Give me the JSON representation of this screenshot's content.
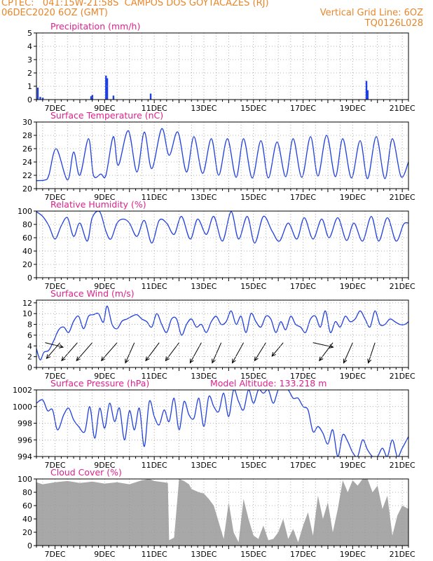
{
  "header": {
    "line1_left": "CPTEC:   041:15W-21:58S  CAMPOS DOS GOYTACAZES (RJ)",
    "line2_left": "06DEC2020 6OZ (GMT)",
    "line2_right": "Vertical Grid Line: 6OZ",
    "line3_right": "TQ0126L028"
  },
  "colors": {
    "header": "#e8862a",
    "title": "#e0208c",
    "series": "#1f3fe0",
    "cloud": "#a8a8a8"
  },
  "x_axis": {
    "ticks": [
      "7DEC",
      "9DEC",
      "11DEC",
      "13DEC",
      "15DEC",
      "17DEC",
      "19DEC",
      "21DEC"
    ],
    "tick_days": [
      7,
      9,
      11,
      13,
      15,
      17,
      19,
      21
    ],
    "range_days": [
      6.25,
      21.25
    ]
  },
  "chart_data": [
    {
      "type": "bar",
      "title": "Precipitation (mm/h)",
      "ylim": [
        0,
        5
      ],
      "yticks": [
        0,
        1,
        2,
        3,
        4,
        5
      ],
      "grid": true,
      "x_days": [
        6.3,
        6.4,
        6.5,
        8.45,
        8.5,
        9.05,
        9.1,
        9.35,
        10.85,
        19.55,
        19.6
      ],
      "values": [
        0.9,
        0.2,
        0.15,
        0.25,
        0.35,
        1.8,
        1.6,
        0.3,
        0.45,
        1.4,
        0.7
      ]
    },
    {
      "type": "line",
      "title": "Surface Temperature (nC)",
      "ylim": [
        20,
        30
      ],
      "yticks": [
        20,
        22,
        24,
        26,
        28,
        30
      ],
      "grid": true,
      "x_days": [
        6.25,
        6.6,
        6.75,
        7.05,
        7.5,
        7.75,
        8.0,
        8.35,
        8.55,
        8.85,
        9.05,
        9.35,
        9.55,
        9.95,
        10.3,
        10.6,
        10.9,
        11.3,
        11.6,
        11.95,
        12.3,
        12.6,
        12.95,
        13.3,
        13.6,
        13.95,
        14.3,
        14.6,
        14.95,
        15.3,
        15.6,
        15.95,
        16.3,
        16.6,
        16.95,
        17.3,
        17.6,
        17.95,
        18.3,
        18.6,
        18.95,
        19.3,
        19.6,
        19.95,
        20.3,
        20.6,
        20.95,
        21.25
      ],
      "values": [
        21.2,
        21.3,
        22.0,
        26.0,
        21.3,
        25.5,
        22.0,
        27.5,
        22.0,
        22.2,
        22.0,
        27.8,
        23.5,
        28.7,
        22.5,
        28.5,
        23.0,
        29.0,
        25.0,
        28.5,
        22.5,
        27.8,
        22.3,
        27.5,
        22.0,
        27.5,
        21.7,
        27.5,
        21.6,
        27.2,
        21.6,
        27.0,
        21.8,
        27.5,
        21.7,
        27.8,
        21.9,
        28.0,
        21.8,
        27.5,
        21.6,
        27.2,
        21.5,
        27.8,
        21.5,
        27.5,
        21.8,
        24.0
      ]
    },
    {
      "type": "line",
      "title": "Relative Humidity (%)",
      "ylim": [
        0,
        100
      ],
      "yticks": [
        0,
        20,
        40,
        60,
        80,
        100
      ],
      "grid": true,
      "x_days": [
        6.25,
        6.5,
        6.75,
        7.0,
        7.25,
        7.5,
        7.75,
        8.0,
        8.3,
        8.5,
        8.8,
        9.05,
        9.25,
        9.5,
        9.75,
        10.0,
        10.3,
        10.6,
        10.9,
        11.2,
        11.5,
        11.8,
        12.1,
        12.45,
        12.75,
        13.1,
        13.4,
        13.75,
        14.1,
        14.4,
        14.75,
        15.05,
        15.4,
        15.75,
        16.05,
        16.4,
        16.75,
        17.05,
        17.4,
        17.75,
        18.05,
        18.4,
        18.75,
        19.05,
        19.4,
        19.75,
        20.05,
        20.4,
        20.75,
        21.05,
        21.25
      ],
      "values": [
        99,
        92,
        78,
        58,
        78,
        90,
        62,
        82,
        55,
        90,
        99,
        70,
        58,
        82,
        88,
        82,
        62,
        86,
        52,
        86,
        82,
        65,
        92,
        58,
        88,
        65,
        92,
        55,
        99,
        58,
        92,
        52,
        92,
        70,
        55,
        82,
        58,
        90,
        58,
        88,
        60,
        90,
        56,
        82,
        55,
        92,
        55,
        90,
        55,
        80,
        82
      ]
    },
    {
      "type": "line",
      "title": "Surface Wind (m/s)",
      "ylim": [
        0,
        12.5
      ],
      "yticks": [
        0,
        2,
        4,
        6,
        8,
        10,
        12
      ],
      "grid": true,
      "x_days": [
        6.25,
        6.4,
        6.55,
        6.75,
        6.95,
        7.15,
        7.35,
        7.55,
        7.75,
        7.95,
        8.15,
        8.35,
        8.55,
        8.75,
        8.95,
        9.1,
        9.3,
        9.5,
        9.7,
        9.9,
        10.1,
        10.3,
        10.5,
        10.7,
        10.9,
        11.1,
        11.3,
        11.5,
        11.7,
        11.9,
        12.1,
        12.3,
        12.5,
        12.7,
        12.9,
        13.1,
        13.3,
        13.5,
        13.7,
        13.9,
        14.1,
        14.3,
        14.5,
        14.7,
        14.9,
        15.1,
        15.3,
        15.5,
        15.7,
        15.9,
        16.1,
        16.3,
        16.5,
        16.7,
        16.9,
        17.1,
        17.3,
        17.5,
        17.7,
        17.9,
        18.1,
        18.3,
        18.5,
        18.7,
        18.9,
        19.1,
        19.3,
        19.5,
        19.7,
        19.9,
        20.1,
        20.3,
        20.5,
        20.7,
        20.9,
        21.1,
        21.25
      ],
      "values": [
        3.5,
        1.4,
        2.8,
        3.2,
        5.0,
        7.0,
        7.5,
        6.5,
        8.6,
        9.5,
        7.2,
        9.5,
        9.8,
        10.0,
        8.4,
        11.4,
        8.0,
        7.2,
        8.6,
        9.0,
        9.5,
        9.8,
        9.0,
        8.5,
        7.5,
        10.0,
        8.0,
        6.5,
        9.0,
        9.0,
        6.0,
        8.0,
        9.0,
        7.5,
        8.0,
        6.5,
        8.5,
        9.5,
        8.0,
        8.5,
        10.5,
        8.0,
        9.5,
        6.5,
        10.0,
        8.5,
        7.5,
        9.5,
        9.0,
        6.5,
        8.5,
        7.0,
        9.5,
        8.0,
        7.5,
        6.5,
        9.0,
        9.5,
        7.5,
        10.5,
        6.5,
        8.5,
        7.5,
        9.5,
        8.5,
        9.0,
        10.5,
        9.0,
        7.5,
        10.5,
        8.0,
        8.0,
        9.0,
        8.5,
        8.0,
        8.0,
        8.5
      ],
      "vectors": {
        "x_days": [
          6.6,
          7.2,
          7.9,
          8.5,
          9.5,
          10.2,
          11.2,
          12.0,
          12.9,
          13.7,
          14.6,
          15.5,
          16.2,
          17.4,
          18.2,
          19.0,
          19.9
        ],
        "u": [
          0.8,
          -0.6,
          -0.7,
          -0.7,
          -0.7,
          -0.4,
          -0.6,
          -0.6,
          -0.5,
          -0.4,
          -0.5,
          -0.5,
          -0.5,
          0.9,
          -0.6,
          -0.4,
          -0.3
        ],
        "v": [
          -0.2,
          -0.7,
          -0.8,
          -0.8,
          -0.8,
          -0.9,
          -0.8,
          -0.8,
          -0.9,
          -0.9,
          -0.9,
          -0.8,
          -0.6,
          -0.2,
          -0.8,
          -0.9,
          -0.9
        ]
      }
    },
    {
      "type": "line",
      "title": "Surface Pressure (hPa)",
      "annotation": "Model Altitude: 133.218 m",
      "ylim": [
        994,
        1002
      ],
      "yticks": [
        994,
        996,
        998,
        1000,
        1002
      ],
      "grid": true,
      "x_days": [
        6.25,
        6.5,
        6.7,
        6.9,
        7.1,
        7.35,
        7.55,
        7.75,
        7.95,
        8.2,
        8.4,
        8.6,
        8.8,
        9.0,
        9.2,
        9.4,
        9.6,
        9.8,
        10.0,
        10.2,
        10.4,
        10.6,
        10.8,
        11.0,
        11.2,
        11.4,
        11.6,
        11.8,
        12.0,
        12.2,
        12.4,
        12.6,
        12.8,
        13.0,
        13.2,
        13.4,
        13.6,
        13.8,
        14.0,
        14.2,
        14.4,
        14.6,
        14.8,
        15.0,
        15.2,
        15.4,
        15.6,
        15.8,
        16.0,
        16.2,
        16.4,
        16.6,
        16.8,
        17.0,
        17.2,
        17.4,
        17.6,
        17.8,
        18.0,
        18.2,
        18.4,
        18.6,
        18.8,
        19.0,
        19.2,
        19.4,
        19.6,
        19.8,
        20.0,
        20.2,
        20.4,
        20.6,
        20.8,
        21.0,
        21.25
      ],
      "values": [
        1000.4,
        1000.8,
        999.5,
        999.6,
        997.2,
        999.0,
        999.8,
        998.4,
        997.6,
        997.0,
        1000.0,
        996.2,
        999.8,
        997.4,
        1000.4,
        998.2,
        999.8,
        996.0,
        999.5,
        997.2,
        999.8,
        995.2,
        1000.6,
        998.8,
        997.8,
        999.6,
        998.2,
        1001.0,
        997.2,
        1000.6,
        999.0,
        998.6,
        1001.0,
        997.6,
        1001.2,
        1000.0,
        999.4,
        1001.6,
        998.8,
        1002.0,
        1000.6,
        999.6,
        1002.0,
        1000.4,
        1002.0,
        1001.6,
        1002.0,
        1000.4,
        1002.0,
        1002.0,
        1002.0,
        1001.0,
        1001.0,
        1000.0,
        999.6,
        997.0,
        997.6,
        996.8,
        995.5,
        997.2,
        994.0,
        996.6,
        995.8,
        994.5,
        994.0,
        996.0,
        994.8,
        994.0,
        994.0,
        995.0,
        994.0,
        996.0,
        994.0,
        995.0,
        996.4
      ]
    },
    {
      "type": "area",
      "title": "Cloud Cover (%)",
      "ylim": [
        0,
        100
      ],
      "yticks": [
        0,
        20,
        40,
        60,
        80,
        100
      ],
      "grid": true,
      "x_days": [
        6.25,
        6.5,
        7.0,
        7.5,
        8.0,
        8.5,
        9.0,
        9.5,
        10.0,
        10.5,
        10.8,
        11.0,
        11.4,
        11.55,
        11.6,
        11.8,
        12.0,
        12.2,
        12.4,
        12.5,
        12.8,
        13.0,
        13.2,
        13.4,
        13.6,
        13.8,
        14.0,
        14.2,
        14.4,
        14.6,
        14.8,
        15.0,
        15.2,
        15.4,
        15.6,
        15.8,
        16.0,
        16.2,
        16.4,
        16.6,
        16.8,
        17.0,
        17.2,
        17.4,
        17.6,
        17.8,
        18.0,
        18.2,
        18.4,
        18.6,
        18.8,
        19.0,
        19.2,
        19.4,
        19.6,
        19.8,
        20.0,
        20.2,
        20.4,
        20.6,
        20.8,
        21.0,
        21.25
      ],
      "values": [
        95,
        92,
        95,
        97,
        94,
        96,
        93,
        95,
        92,
        98,
        100,
        97,
        95,
        94,
        8,
        12,
        100,
        97,
        92,
        85,
        80,
        78,
        70,
        60,
        35,
        10,
        65,
        20,
        5,
        70,
        40,
        15,
        10,
        30,
        8,
        10,
        20,
        40,
        10,
        25,
        5,
        30,
        50,
        15,
        75,
        40,
        65,
        20,
        55,
        98,
        80,
        98,
        90,
        100,
        100,
        80,
        90,
        55,
        75,
        15,
        45,
        60,
        55
      ]
    }
  ]
}
